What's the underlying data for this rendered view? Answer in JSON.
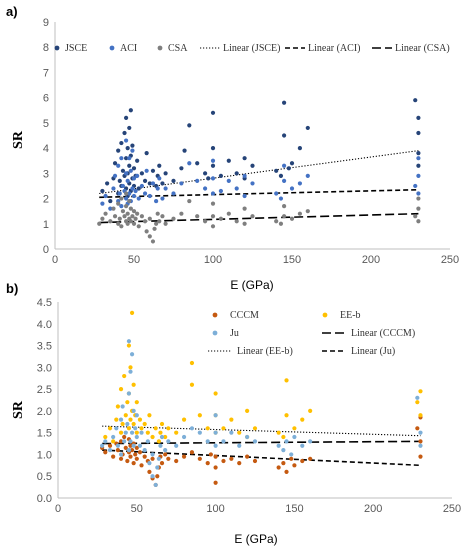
{
  "chart_data": [
    {
      "type": "scatter",
      "panel_label": "a)",
      "xlabel": "E (GPa)",
      "ylabel": "SR",
      "xlim": [
        0,
        250
      ],
      "ylim": [
        0,
        9
      ],
      "xticks": [
        0,
        50,
        100,
        150,
        200,
        250
      ],
      "yticks": [
        0,
        1,
        2,
        3,
        4,
        5,
        6,
        7,
        8,
        9
      ],
      "grid": false,
      "legend_position": "top",
      "series": [
        {
          "name": "JSCE",
          "color": "#264478",
          "marker": "circle",
          "x": [
            30,
            33,
            35,
            37,
            38,
            40,
            40,
            41,
            42,
            42,
            43,
            44,
            44,
            45,
            45,
            45,
            46,
            46,
            46,
            47,
            47,
            47,
            48,
            48,
            48,
            49,
            49,
            50,
            50,
            51,
            52,
            53,
            55,
            57,
            58,
            60,
            62,
            64,
            65,
            66,
            68,
            70,
            75,
            80,
            82,
            85,
            90,
            95,
            97,
            100,
            100,
            100,
            105,
            110,
            115,
            120,
            120,
            125,
            140,
            143,
            145,
            145,
            148,
            150,
            155,
            160,
            228,
            230,
            230,
            230,
            230
          ],
          "y": [
            2.3,
            2.6,
            1.9,
            2.8,
            3.4,
            2.2,
            3.9,
            2.7,
            4.2,
            2.5,
            3.1,
            2.9,
            4.6,
            2.4,
            3.6,
            5.2,
            2.1,
            3.0,
            4.0,
            2.6,
            3.3,
            4.8,
            2.3,
            3.7,
            5.5,
            2.8,
            4.1,
            2.5,
            3.2,
            2.9,
            3.5,
            2.4,
            3.0,
            2.7,
            3.8,
            2.6,
            3.1,
            2.5,
            2.9,
            3.3,
            2.6,
            3.0,
            2.7,
            3.2,
            3.9,
            4.9,
            3.4,
            3.0,
            2.8,
            3.3,
            4.0,
            5.4,
            2.9,
            3.5,
            3.0,
            2.8,
            3.6,
            3.3,
            3.1,
            2.9,
            4.5,
            5.8,
            3.2,
            3.4,
            4.0,
            4.8,
            5.9,
            5.2,
            4.6,
            3.8,
            3.3
          ]
        },
        {
          "name": "ACI",
          "color": "#4472C4",
          "marker": "circle",
          "x": [
            30,
            32,
            35,
            37,
            38,
            40,
            40,
            41,
            42,
            42,
            43,
            44,
            45,
            45,
            45,
            46,
            46,
            47,
            47,
            48,
            48,
            49,
            49,
            50,
            50,
            51,
            52,
            53,
            55,
            57,
            58,
            60,
            62,
            64,
            65,
            66,
            68,
            70,
            75,
            80,
            85,
            90,
            95,
            100,
            100,
            100,
            105,
            110,
            115,
            120,
            120,
            125,
            140,
            143,
            145,
            145,
            150,
            155,
            160,
            228,
            230,
            230,
            230
          ],
          "y": [
            1.8,
            2.1,
            1.6,
            2.4,
            2.9,
            1.9,
            3.3,
            2.2,
            3.6,
            1.7,
            2.5,
            2.3,
            2.0,
            3.0,
            4.3,
            1.8,
            2.7,
            2.2,
            3.6,
            1.9,
            3.1,
            2.4,
            3.9,
            2.1,
            2.8,
            2.3,
            2.9,
            2.0,
            2.5,
            2.2,
            3.1,
            2.1,
            2.6,
            1.9,
            2.4,
            2.8,
            2.0,
            2.4,
            2.2,
            2.6,
            3.4,
            2.7,
            2.4,
            2.2,
            2.8,
            3.5,
            2.3,
            2.7,
            2.4,
            2.1,
            2.9,
            2.6,
            2.2,
            2.0,
            2.7,
            3.3,
            2.4,
            2.6,
            2.9,
            2.5,
            2.9,
            3.6,
            2.2
          ],
          "trendline": {
            "name": "Linear (ACI)",
            "style": "dash",
            "x": [
              28,
              230
            ],
            "y": [
              2.05,
              2.35
            ]
          }
        },
        {
          "name": "CSA",
          "color": "#7F7F7F",
          "marker": "circle",
          "x": [
            28,
            30,
            32,
            35,
            37,
            38,
            40,
            40,
            41,
            42,
            42,
            43,
            44,
            45,
            45,
            45,
            46,
            46,
            47,
            47,
            48,
            48,
            49,
            50,
            50,
            51,
            52,
            53,
            55,
            57,
            58,
            60,
            60,
            62,
            63,
            64,
            65,
            66,
            68,
            70,
            75,
            80,
            85,
            90,
            95,
            100,
            100,
            100,
            105,
            110,
            115,
            120,
            120,
            125,
            140,
            143,
            145,
            145,
            150,
            155,
            160,
            228,
            230,
            230,
            230
          ],
          "y": [
            1.0,
            1.2,
            1.4,
            1.1,
            1.6,
            1.3,
            1.0,
            1.8,
            1.2,
            2.0,
            0.9,
            1.5,
            1.3,
            1.1,
            1.7,
            2.2,
            1.0,
            1.4,
            1.2,
            1.9,
            1.1,
            1.6,
            1.3,
            1.0,
            1.5,
            1.2,
            1.4,
            0.9,
            1.3,
            1.1,
            0.7,
            0.5,
            1.2,
            0.3,
            0.8,
            1.0,
            1.4,
            1.1,
            1.3,
            1.0,
            1.2,
            1.4,
            1.9,
            1.3,
            1.1,
            0.9,
            1.3,
            1.8,
            1.2,
            1.4,
            1.1,
            1.0,
            1.6,
            1.3,
            1.1,
            1.0,
            1.3,
            1.7,
            1.2,
            1.4,
            1.5,
            1.3,
            1.6,
            2.0,
            1.1
          ],
          "trendline": {
            "name": "Linear (CSA)",
            "style": "longdash",
            "x": [
              28,
              230
            ],
            "y": [
              1.05,
              1.4
            ]
          }
        }
      ],
      "extra_legend": [
        {
          "name": "Linear (JSCE)",
          "style": "dot",
          "x": [
            28,
            230
          ],
          "y": [
            2.2,
            3.9
          ]
        }
      ]
    },
    {
      "type": "scatter",
      "panel_label": "b)",
      "xlabel": "E (GPa)",
      "ylabel": "SR",
      "xlim": [
        0,
        250
      ],
      "ylim": [
        0,
        4.5
      ],
      "xticks": [
        0,
        50,
        100,
        150,
        200,
        250
      ],
      "yticks": [
        "0.0",
        "0.5",
        "1.0",
        "1.5",
        "2.0",
        "2.5",
        "3.0",
        "3.5",
        "4.0",
        "4.5"
      ],
      "grid": false,
      "legend_position": "top",
      "series": [
        {
          "name": "CCCM",
          "color": "#C55A11",
          "marker": "circle",
          "x": [
            28,
            30,
            33,
            35,
            37,
            38,
            40,
            40,
            41,
            42,
            43,
            44,
            45,
            45,
            46,
            46,
            47,
            48,
            48,
            49,
            50,
            50,
            52,
            53,
            55,
            57,
            58,
            60,
            60,
            62,
            63,
            64,
            65,
            66,
            68,
            70,
            75,
            80,
            85,
            90,
            95,
            97,
            100,
            100,
            100,
            105,
            110,
            115,
            120,
            125,
            140,
            143,
            145,
            148,
            150,
            155,
            160,
            228,
            230,
            230,
            230
          ],
          "y": [
            1.15,
            1.05,
            1.2,
            0.95,
            1.25,
            1.1,
            0.9,
            1.3,
            1.0,
            1.4,
            1.15,
            0.85,
            1.05,
            1.35,
            0.95,
            1.2,
            1.1,
            0.8,
            1.25,
            1.0,
            0.9,
            1.15,
            1.05,
            0.75,
            0.95,
            0.85,
            0.6,
            0.45,
            0.9,
            0.3,
            0.5,
            0.7,
            0.95,
            0.8,
            1.0,
            0.9,
            0.85,
            0.95,
            1.05,
            0.9,
            0.8,
            1.0,
            0.35,
            0.7,
            0.95,
            0.85,
            0.9,
            0.8,
            0.95,
            0.85,
            0.7,
            0.8,
            0.6,
            0.9,
            0.75,
            0.85,
            0.9,
            1.6,
            1.85,
            1.3,
            0.95
          ]
        },
        {
          "name": "EE-b",
          "color": "#FFC000",
          "marker": "circle",
          "x": [
            30,
            33,
            35,
            37,
            38,
            40,
            40,
            41,
            42,
            43,
            44,
            45,
            45,
            45,
            46,
            46,
            47,
            47,
            48,
            48,
            49,
            50,
            50,
            52,
            53,
            55,
            57,
            58,
            60,
            62,
            64,
            65,
            66,
            68,
            70,
            75,
            80,
            85,
            85,
            90,
            95,
            100,
            100,
            100,
            105,
            110,
            115,
            120,
            120,
            125,
            140,
            143,
            145,
            145,
            150,
            155,
            160,
            228,
            230,
            230
          ],
          "y": [
            1.4,
            1.6,
            1.3,
            1.8,
            2.1,
            1.5,
            2.5,
            1.7,
            2.8,
            1.9,
            2.2,
            1.6,
            2.4,
            3.5,
            1.8,
            3.0,
            2.0,
            4.25,
            1.7,
            2.6,
            1.9,
            1.5,
            2.2,
            1.8,
            1.6,
            1.7,
            1.5,
            1.9,
            1.4,
            1.6,
            1.3,
            1.5,
            1.7,
            1.4,
            1.6,
            1.5,
            1.8,
            2.6,
            3.1,
            1.9,
            1.6,
            1.5,
            1.9,
            2.4,
            1.6,
            1.8,
            1.5,
            1.4,
            2.0,
            1.6,
            1.5,
            1.4,
            1.9,
            2.7,
            1.6,
            1.8,
            2.0,
            2.2,
            2.45,
            1.9
          ],
          "trendline": {
            "name": "Linear (EE-b)",
            "style": "dot",
            "x": [
              28,
              230
            ],
            "y": [
              1.65,
              1.43
            ]
          }
        },
        {
          "name": "Ju",
          "color": "#7DAFD8",
          "marker": "circle",
          "x": [
            28,
            30,
            33,
            35,
            37,
            38,
            40,
            40,
            41,
            42,
            43,
            44,
            45,
            45,
            45,
            46,
            46,
            47,
            47,
            48,
            48,
            49,
            50,
            50,
            52,
            53,
            55,
            57,
            58,
            60,
            60,
            62,
            63,
            64,
            65,
            66,
            68,
            70,
            75,
            80,
            85,
            90,
            95,
            100,
            100,
            100,
            105,
            110,
            115,
            120,
            125,
            140,
            143,
            145,
            148,
            150,
            155,
            160,
            228,
            230,
            230
          ],
          "y": [
            1.2,
            1.3,
            1.1,
            1.4,
            1.6,
            1.2,
            1.8,
            1.0,
            2.1,
            1.3,
            1.5,
            1.7,
            1.1,
            2.4,
            3.6,
            1.3,
            2.9,
            1.5,
            3.3,
            1.2,
            2.0,
            1.6,
            1.4,
            1.9,
            1.2,
            1.5,
            1.1,
            1.3,
            0.8,
            0.5,
            1.0,
            0.3,
            0.7,
            0.9,
            1.2,
            1.4,
            1.1,
            1.3,
            1.2,
            1.4,
            1.6,
            1.5,
            1.3,
            1.2,
            1.5,
            1.9,
            1.3,
            1.5,
            1.2,
            1.4,
            1.3,
            1.2,
            1.1,
            1.3,
            1.0,
            1.4,
            1.2,
            1.3,
            2.3,
            1.5,
            1.2
          ],
          "trendline": {
            "name": "Linear (Ju)",
            "style": "dash",
            "x": [
              28,
              230
            ],
            "y": [
              1.1,
              0.75
            ]
          }
        }
      ],
      "extra_trendline": {
        "name": "Linear (CCCM)",
        "style": "longdash",
        "x": [
          28,
          230
        ],
        "y": [
          1.25,
          1.3
        ]
      }
    }
  ]
}
